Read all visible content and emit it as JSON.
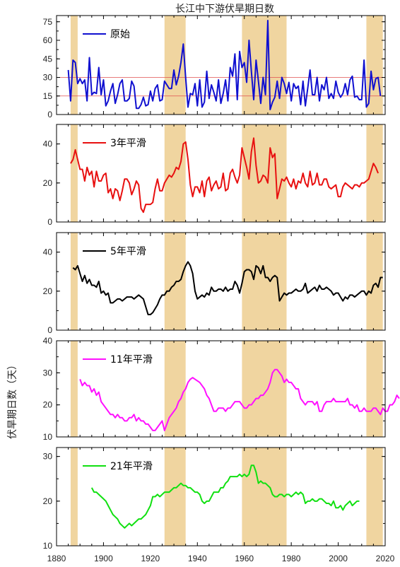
{
  "chart_data": {
    "type": "line",
    "title": "长江中下游伏旱期日数",
    "ylabel": "伏旱期日数（天）",
    "xlim": [
      1880,
      2020
    ],
    "xticks": [
      1880,
      1900,
      1920,
      1940,
      1960,
      1980,
      2000,
      2020
    ],
    "x_tick_labels": [
      "1880",
      "1900",
      "1920",
      "1940",
      "1960",
      "1980",
      "2000",
      "2020"
    ],
    "shaded_periods": [
      [
        1886,
        1889
      ],
      [
        1926,
        1935
      ],
      [
        1959,
        1978
      ],
      [
        2012,
        2019
      ]
    ],
    "shade_color": "#f0d5a0",
    "panels": [
      {
        "legend": "原始",
        "color": "#1010d0",
        "ylim": [
          0,
          80
        ],
        "yticks": [
          0,
          15,
          30,
          45,
          60,
          75
        ],
        "y_tick_labels": [
          "0",
          "15",
          "30",
          "45",
          "60",
          "75"
        ],
        "hlines": [
          15,
          30
        ],
        "hline_color": "#e05050",
        "x_start": 1885,
        "values": [
          36,
          11,
          44,
          42,
          25,
          29,
          25,
          28,
          11,
          46,
          16,
          18,
          17,
          38,
          16,
          28,
          7,
          11,
          19,
          25,
          9,
          16,
          25,
          28,
          11,
          11,
          13,
          27,
          23,
          5,
          5,
          8,
          14,
          7,
          8,
          19,
          11,
          21,
          24,
          11,
          12,
          27,
          24,
          21,
          21,
          36,
          24,
          31,
          42,
          57,
          30,
          6,
          17,
          16,
          25,
          7,
          28,
          6,
          10,
          35,
          13,
          24,
          18,
          11,
          28,
          9,
          17,
          28,
          11,
          38,
          31,
          49,
          12,
          51,
          38,
          42,
          26,
          60,
          35,
          12,
          44,
          27,
          9,
          30,
          16,
          76,
          4,
          10,
          14,
          27,
          13,
          30,
          25,
          17,
          26,
          11,
          25,
          21,
          23,
          8,
          27,
          7,
          21,
          36,
          16,
          16,
          30,
          11,
          24,
          20,
          30,
          13,
          17,
          13,
          27,
          18,
          14,
          17,
          25,
          16,
          28,
          31,
          14,
          15,
          12,
          12,
          44,
          6,
          9,
          35,
          20,
          29,
          30,
          15
        ],
        "y_tick_side": "left"
      },
      {
        "legend": "3年平滑",
        "color": "#e81010",
        "ylim": [
          0,
          50
        ],
        "yticks": [
          0,
          20,
          40
        ],
        "y_tick_labels": [
          "0",
          "20",
          "40"
        ],
        "hlines": [],
        "x_start": 1886,
        "values": [
          30,
          32,
          37,
          32,
          27,
          27,
          21,
          28,
          24,
          26,
          18,
          26,
          21,
          21,
          24,
          25,
          15,
          17,
          12,
          17,
          16,
          11,
          16,
          22,
          22,
          20,
          14,
          17,
          21,
          19,
          7,
          5,
          9,
          9,
          9,
          10,
          17,
          22,
          16,
          16,
          20,
          22,
          24,
          23,
          25,
          28,
          27,
          31,
          40,
          41,
          32,
          19,
          13,
          18,
          18,
          15,
          21,
          13,
          21,
          23,
          16,
          19,
          21,
          17,
          18,
          25,
          16,
          17,
          25,
          27,
          23,
          20,
          24,
          38,
          33,
          28,
          22,
          36,
          43,
          29,
          20,
          21,
          24,
          23,
          20,
          38,
          33,
          35,
          12,
          17,
          22,
          21,
          23,
          20,
          18,
          22,
          17,
          21,
          20,
          25,
          20,
          18,
          26,
          19,
          20,
          25,
          19,
          19,
          22,
          22,
          18,
          17,
          18,
          19,
          13,
          13,
          18,
          20,
          19,
          18,
          17,
          19,
          19,
          18,
          20,
          20,
          21,
          22,
          26,
          30,
          28,
          25
        ]
      },
      {
        "legend": "5年平滑",
        "color": "#000000",
        "ylim": [
          0,
          50
        ],
        "yticks": [
          0,
          20,
          40
        ],
        "y_tick_labels": [
          "0",
          "20",
          "40"
        ],
        "hlines": [],
        "x_start": 1887,
        "values": [
          32,
          31,
          33,
          29,
          25,
          28,
          24,
          26,
          23,
          23,
          22,
          25,
          19,
          20,
          18,
          19,
          14,
          14,
          15,
          16,
          16,
          15,
          16,
          17,
          17,
          17,
          16,
          17,
          18,
          17,
          16,
          12,
          8,
          8,
          9,
          11,
          13,
          16,
          18,
          18,
          20,
          20,
          22,
          23,
          25,
          25,
          26,
          30,
          33,
          35,
          33,
          29,
          20,
          16,
          17,
          18,
          17,
          19,
          18,
          22,
          20,
          20,
          21,
          21,
          20,
          22,
          20,
          21,
          21,
          25,
          23,
          19,
          24,
          30,
          31,
          31,
          30,
          26,
          33,
          32,
          29,
          33,
          27,
          27,
          25,
          27,
          28,
          27,
          15,
          17,
          19,
          18,
          19,
          19,
          20,
          21,
          20,
          20,
          21,
          24,
          19,
          20,
          21,
          22,
          20,
          23,
          21,
          21,
          22,
          21,
          20,
          18,
          19,
          19,
          17,
          15,
          17,
          16,
          18,
          18,
          17,
          18,
          19,
          20,
          20,
          18,
          20,
          19,
          23,
          24,
          22,
          27,
          27
        ]
      },
      {
        "legend": "11年平滑",
        "color": "#ff10ff",
        "ylim": [
          10,
          40
        ],
        "yticks": [
          10,
          20,
          30,
          40
        ],
        "y_tick_labels": [
          "10",
          "20",
          "30",
          "40"
        ],
        "hlines": [],
        "x_start": 1890,
        "values": [
          28,
          26,
          27,
          26,
          26,
          24,
          25,
          23,
          24,
          21,
          20,
          19,
          18,
          17,
          17,
          16,
          17,
          16,
          16,
          15,
          15,
          16,
          16,
          17,
          15,
          16,
          15,
          15,
          14,
          14,
          13,
          12,
          12,
          13,
          14,
          15,
          12,
          14,
          16,
          17,
          18,
          19,
          21,
          22,
          24,
          25,
          27,
          28,
          28.5,
          28,
          27.5,
          27,
          26,
          25,
          23,
          22,
          20,
          18,
          18,
          19,
          19,
          19,
          18,
          19,
          19,
          20,
          21,
          21,
          21,
          20,
          19,
          19,
          20,
          20,
          21,
          22,
          22,
          23,
          23,
          24,
          25,
          27,
          30,
          31,
          31,
          30,
          29,
          27,
          28,
          27,
          27,
          26,
          25,
          25,
          22,
          21,
          20,
          21,
          21,
          21,
          20,
          21,
          18,
          18,
          20,
          21,
          21,
          21,
          22,
          21,
          21,
          21,
          21,
          21,
          22,
          20,
          20,
          19,
          20,
          18,
          18,
          19,
          18,
          18,
          18,
          19,
          19,
          18,
          17,
          19,
          18,
          18,
          20,
          20,
          21,
          23,
          22
        ]
      },
      {
        "legend": "21年平滑",
        "color": "#10e010",
        "ylim": [
          10,
          32
        ],
        "yticks": [
          10,
          20,
          30
        ],
        "y_tick_labels": [
          "10",
          "20",
          "30"
        ],
        "hlines": [],
        "x_start": 1895,
        "values": [
          23,
          22,
          22,
          21.5,
          21,
          20.5,
          20,
          19,
          18,
          17,
          16.5,
          16,
          15,
          14.5,
          14,
          14.5,
          15,
          14.5,
          15,
          15.5,
          16,
          16,
          16.5,
          17,
          18,
          19,
          21,
          21,
          21.5,
          21,
          21.5,
          22,
          22,
          22,
          22.5,
          23,
          23,
          23.5,
          24,
          23.5,
          23.5,
          23,
          23,
          22.5,
          22,
          22,
          21.5,
          20,
          19.5,
          20,
          20,
          21,
          22,
          22,
          22,
          23,
          23,
          24,
          24.5,
          25.5,
          25.5,
          25.5,
          25.5,
          26,
          25.5,
          26,
          25.5,
          26,
          28,
          28,
          26.5,
          24,
          24.5,
          24,
          24,
          23.5,
          23,
          21.5,
          21,
          21,
          21.5,
          21.5,
          21,
          21.5,
          21.5,
          21,
          21.5,
          22,
          21.5,
          22,
          21.5,
          19.5,
          20,
          20,
          20.5,
          20,
          20,
          20.5,
          20.5,
          20,
          19.5,
          19.5,
          19,
          20,
          18.5,
          18.5,
          19,
          18,
          19,
          19.5,
          20,
          19,
          19.5,
          20,
          20
        ]
      }
    ]
  }
}
